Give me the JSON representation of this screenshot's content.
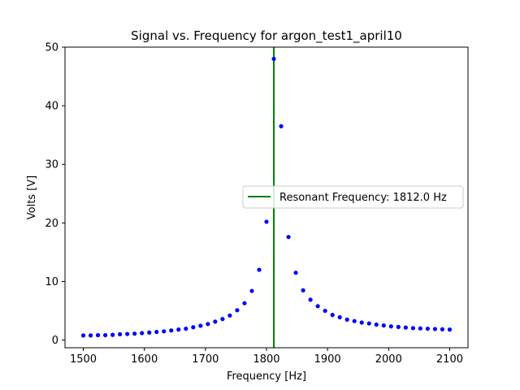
{
  "chart_data": {
    "type": "scatter",
    "title": "Signal vs. Frequency for argon_test1_april10",
    "xlabel": "Frequency [Hz]",
    "ylabel": "Volts [V]",
    "xlim": [
      1470,
      2130
    ],
    "ylim": [
      -1.3,
      50
    ],
    "xticks": [
      1500,
      1600,
      1700,
      1800,
      1900,
      2000,
      2100
    ],
    "yticks": [
      0,
      10,
      20,
      30,
      40,
      50
    ],
    "grid": false,
    "legend_position": "center-right",
    "series": [
      {
        "marker_color": "#0000ff",
        "x": [
          1500,
          1512,
          1524,
          1536,
          1548,
          1560,
          1572,
          1584,
          1596,
          1608,
          1620,
          1632,
          1644,
          1656,
          1668,
          1680,
          1692,
          1704,
          1716,
          1728,
          1740,
          1752,
          1764,
          1776,
          1788,
          1800,
          1812,
          1824,
          1836,
          1848,
          1860,
          1872,
          1884,
          1896,
          1908,
          1920,
          1932,
          1944,
          1956,
          1968,
          1980,
          1992,
          2004,
          2016,
          2028,
          2040,
          2052,
          2064,
          2076,
          2088,
          2100
        ],
        "y": [
          0.8,
          0.8,
          0.85,
          0.85,
          0.9,
          1.0,
          1.05,
          1.1,
          1.2,
          1.3,
          1.4,
          1.5,
          1.65,
          1.8,
          1.95,
          2.2,
          2.45,
          2.75,
          3.15,
          3.6,
          4.2,
          5.1,
          6.3,
          8.4,
          12.0,
          20.2,
          48.0,
          36.5,
          17.6,
          11.5,
          8.5,
          6.9,
          5.8,
          5.0,
          4.3,
          3.9,
          3.5,
          3.25,
          3.0,
          2.85,
          2.65,
          2.5,
          2.35,
          2.25,
          2.15,
          2.05,
          2.0,
          1.95,
          1.9,
          1.85,
          1.8
        ]
      }
    ],
    "resonance": {
      "x": 1812.0,
      "color": "#008000",
      "label": "Resonant Frequency: 1812.0 Hz"
    }
  }
}
